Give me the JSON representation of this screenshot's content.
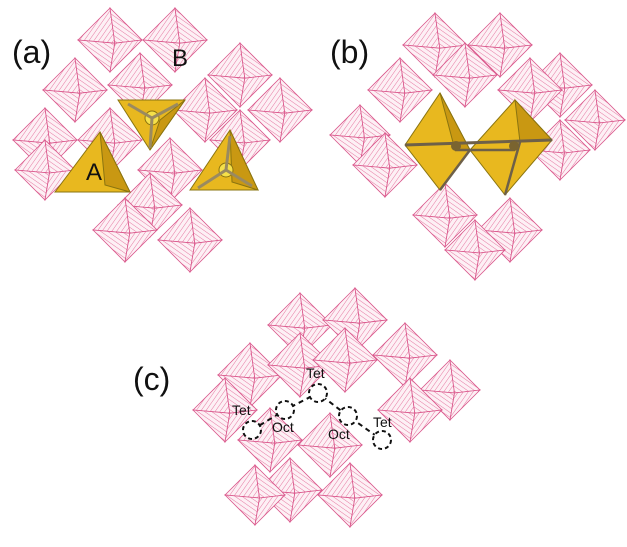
{
  "figure": {
    "colors": {
      "octahedron_edge": "#e0608f",
      "octahedron_fill": "#fbe6ee",
      "tetrahedron_fill": "#e8b81f",
      "tetrahedron_dark": "#c99812",
      "site_marker": "#111111"
    },
    "panels": [
      {
        "label": "(a)",
        "site_labels": [
          "A",
          "B"
        ]
      },
      {
        "label": "(b)"
      },
      {
        "label": "(c)",
        "path_labels": [
          "Tet",
          "Oct",
          "Tet",
          "Oct",
          "Tet"
        ]
      }
    ]
  }
}
